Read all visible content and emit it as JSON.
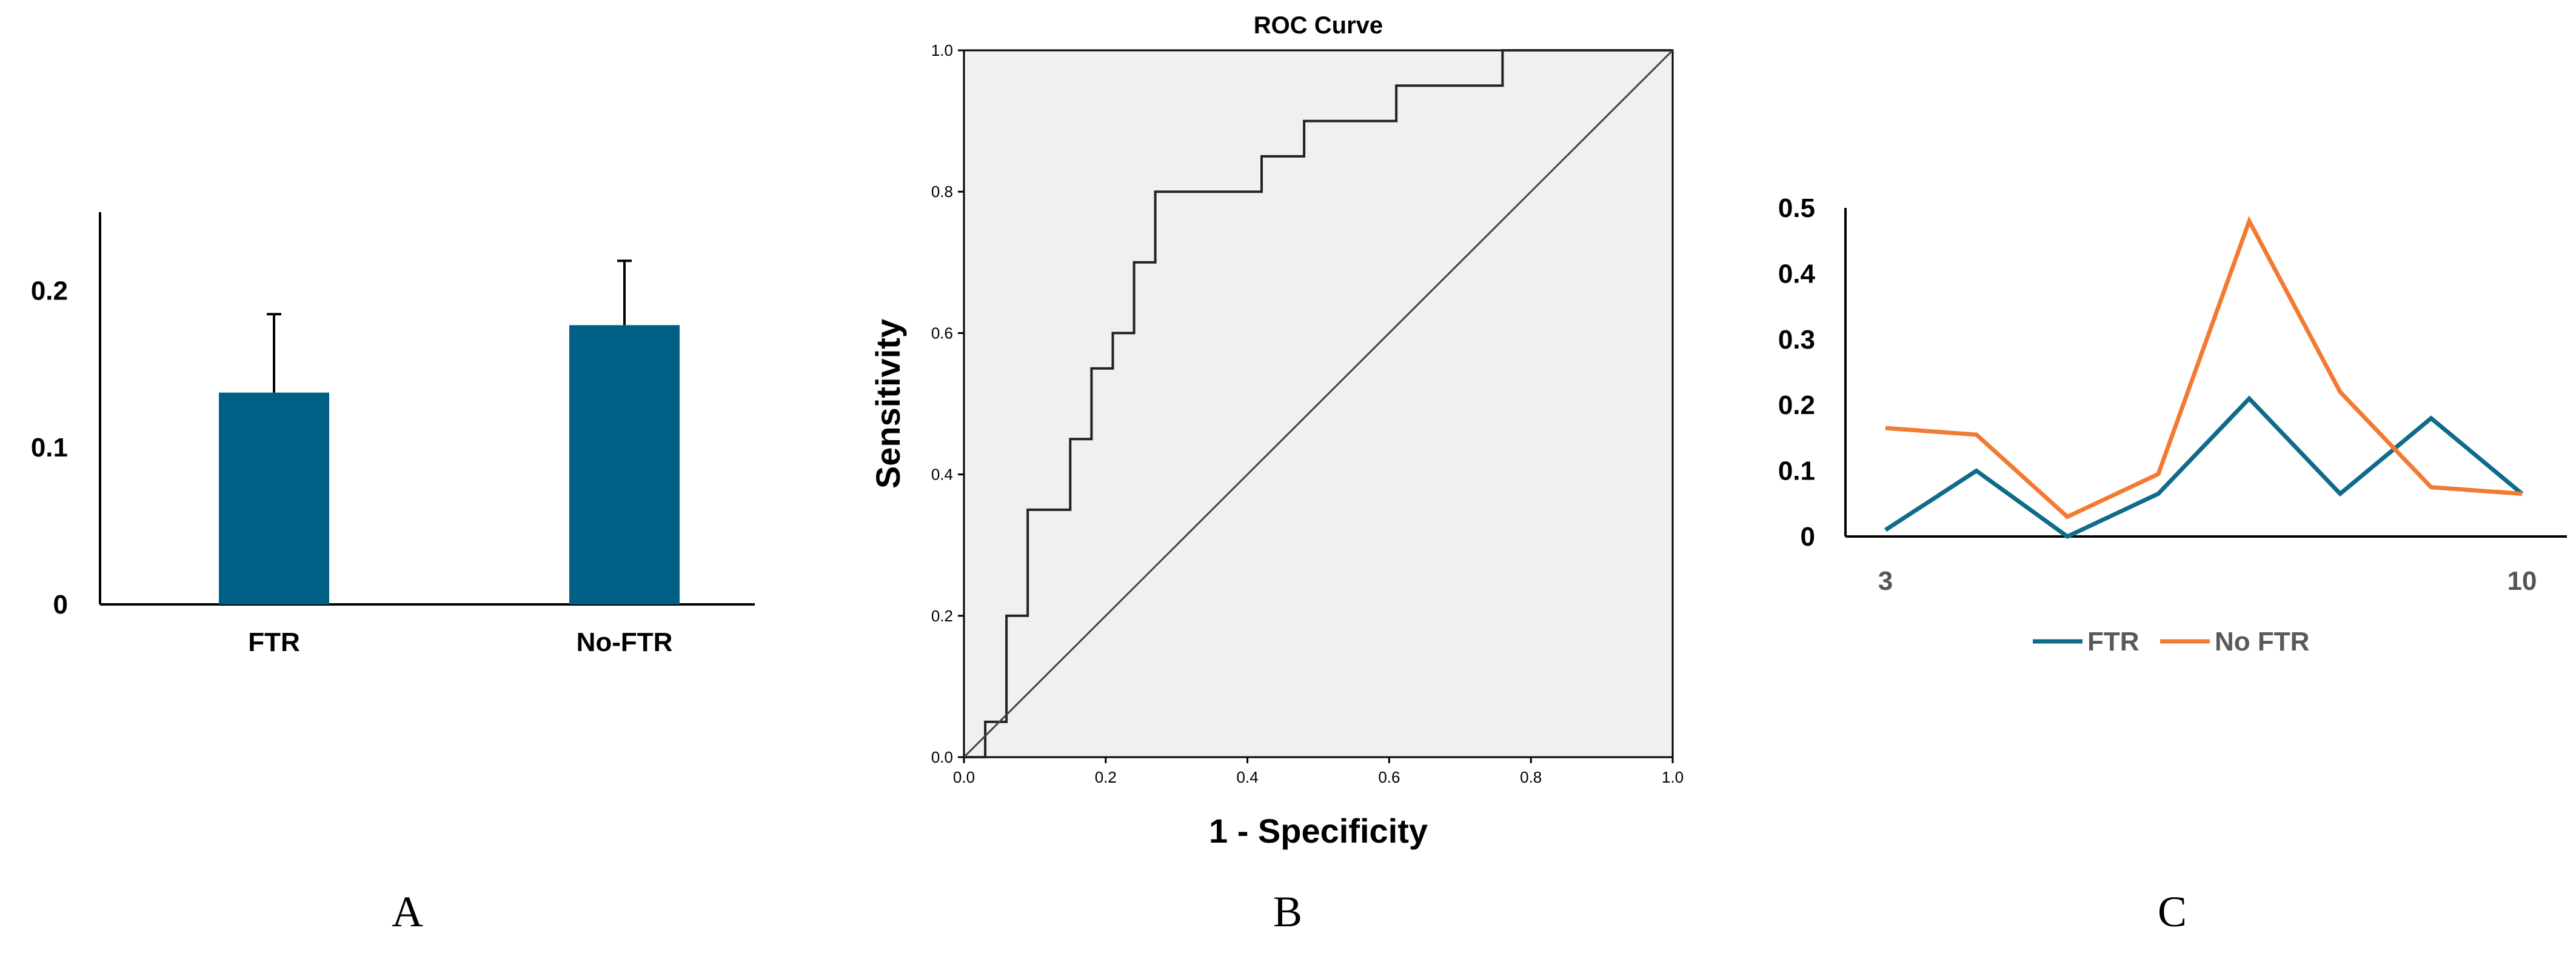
{
  "panels": {
    "a": {
      "letter": "A"
    },
    "b": {
      "letter": "B"
    },
    "c": {
      "letter": "C"
    }
  },
  "colors": {
    "bar": "#005F85",
    "ftr_line": "#0F6B8A",
    "no_ftr_line": "#F37A33",
    "roc_bg": "#F0F0F0"
  },
  "chart_data": [
    {
      "type": "bar",
      "categories": [
        "FTR",
        "No-FTR"
      ],
      "values": [
        0.135,
        0.178
      ],
      "error_upper": [
        0.185,
        0.219
      ],
      "ylim": [
        0,
        0.25
      ],
      "yticks": [
        0,
        0.1,
        0.2
      ],
      "ytick_labels": [
        "0",
        "0.1",
        "0.2"
      ],
      "title": "",
      "xlabel": "",
      "ylabel": "",
      "grid": false
    },
    {
      "type": "line",
      "title": "ROC Curve",
      "xlabel": "1 - Specificity",
      "ylabel": "Sensitivity",
      "xlim": [
        0,
        1
      ],
      "ylim": [
        0,
        1
      ],
      "xticks": [
        0,
        0.2,
        0.4,
        0.6,
        0.8,
        1
      ],
      "yticks": [
        0,
        0.2,
        0.4,
        0.6,
        0.8,
        1
      ],
      "xtick_labels": [
        "0.0",
        "0.2",
        "0.4",
        "0.6",
        "0.8",
        "1.0"
      ],
      "ytick_labels": [
        "0.0",
        "0.2",
        "0.4",
        "0.6",
        "0.8",
        "1.0"
      ],
      "grid": false,
      "series": [
        {
          "x": [
            0,
            0.03,
            0.03,
            0.06,
            0.06,
            0.09,
            0.09,
            0.15,
            0.15,
            0.18,
            0.18,
            0.21,
            0.21,
            0.24,
            0.24,
            0.27,
            0.27,
            0.42,
            0.42,
            0.48,
            0.48,
            0.61,
            0.61,
            0.76,
            0.76,
            1.0
          ],
          "y": [
            0,
            0,
            0.05,
            0.05,
            0.2,
            0.2,
            0.35,
            0.35,
            0.45,
            0.45,
            0.55,
            0.55,
            0.6,
            0.6,
            0.7,
            0.7,
            0.8,
            0.8,
            0.85,
            0.85,
            0.9,
            0.9,
            0.95,
            0.95,
            1.0,
            1.0
          ]
        },
        {
          "x": [
            0,
            1
          ],
          "y": [
            0,
            1
          ]
        }
      ]
    },
    {
      "type": "line",
      "x": [
        3,
        4,
        5,
        6,
        7,
        8,
        9,
        10
      ],
      "xticks": [
        3,
        10
      ],
      "xtick_labels": [
        "3",
        "10"
      ],
      "ylim": [
        0,
        0.5
      ],
      "yticks": [
        0,
        0.1,
        0.2,
        0.3,
        0.4,
        0.5
      ],
      "ytick_labels": [
        "0",
        "0.1",
        "0.2",
        "0.3",
        "0.4",
        "0.5"
      ],
      "title": "",
      "xlabel": "",
      "ylabel": "",
      "grid": false,
      "legend": "bottom",
      "series": [
        {
          "name": "FTR",
          "values": [
            0.01,
            0.1,
            0.0,
            0.065,
            0.21,
            0.065,
            0.18,
            0.065
          ]
        },
        {
          "name": "No FTR",
          "values": [
            0.165,
            0.155,
            0.03,
            0.095,
            0.48,
            0.22,
            0.075,
            0.065
          ]
        }
      ]
    }
  ]
}
